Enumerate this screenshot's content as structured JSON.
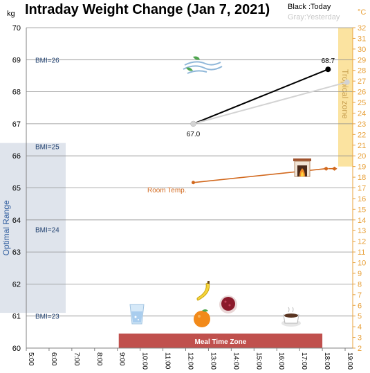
{
  "header": {
    "title": "Intraday Weight Change (Jan 7, 2021)",
    "legend_today": "Black :Today",
    "legend_yesterday": "Gray:Yesterday",
    "unit_left": "kg",
    "unit_right": "°C"
  },
  "chart_data": {
    "type": "line",
    "title": "Intraday Weight Change (Jan 7, 2021)",
    "x_ticks": [
      "5:00",
      "6:00",
      "7:00",
      "8:00",
      "9:00",
      "10:00",
      "11:00",
      "12:00",
      "13:00",
      "14:00",
      "15:00",
      "16:00",
      "17:00",
      "18:00",
      "19:00"
    ],
    "xlim": [
      "5:00",
      "19:20"
    ],
    "y_left": {
      "unit": "kg",
      "ylim": [
        60,
        70
      ],
      "ticks": [
        "60",
        "61",
        "62",
        "63",
        "64",
        "65",
        "66",
        "67",
        "68",
        "69",
        "70"
      ]
    },
    "y_right": {
      "unit": "°C",
      "ylim": [
        2,
        32
      ],
      "ticks": [
        "2",
        "3",
        "4",
        "5",
        "6",
        "7",
        "8",
        "9",
        "10",
        "11",
        "12",
        "13",
        "14",
        "15",
        "16",
        "17",
        "18",
        "19",
        "20",
        "21",
        "22",
        "23",
        "24",
        "25",
        "26",
        "27",
        "28",
        "29",
        "30",
        "31",
        "32"
      ]
    },
    "grid": true,
    "series": [
      {
        "name": "Today",
        "color": "#000000",
        "axis": "left",
        "points": [
          {
            "x": "12:20",
            "y": 67.0,
            "label": "67.0"
          },
          {
            "x": "18:15",
            "y": 68.7,
            "label": "68.7"
          }
        ]
      },
      {
        "name": "Yesterday",
        "color": "#d3d3d3",
        "axis": "left",
        "points": [
          {
            "x": "12:20",
            "y": 67.0
          },
          {
            "x": "19:05",
            "y": 68.3
          }
        ]
      },
      {
        "name": "Room Temp.",
        "color": "#d2691e",
        "axis": "right",
        "points": [
          {
            "x": "12:20",
            "y": 17.5
          },
          {
            "x": "18:10",
            "y": 18.8
          }
        ]
      }
    ],
    "bmi_lines": [
      {
        "label": "BMI=26",
        "y": 69.0
      },
      {
        "label": "BMI=25",
        "y": 66.3
      },
      {
        "label": "BMI=24",
        "y": 63.7
      },
      {
        "label": "BMI=23",
        "y": 61.0
      }
    ],
    "zones": {
      "optimal": {
        "label": "Optimal Range",
        "y_range": [
          61.1,
          66.4
        ],
        "color": "#dfe4ec"
      },
      "tropical": {
        "label": "Tropical zone",
        "y_range_right": [
          19.0,
          32.0
        ],
        "color": "#fbe3a0"
      },
      "meal": {
        "label": "Meal Time Zone",
        "x_range": [
          "9:00",
          "18:00"
        ],
        "color": "#c0504d"
      }
    },
    "annotations": {
      "room_temp_label": "Room Temp."
    },
    "icons": [
      "wind-icon",
      "fireplace-icon",
      "water-glass-icon",
      "banana-icon",
      "orange-icon",
      "berry-bowl-icon",
      "coffee-cup-icon"
    ]
  }
}
